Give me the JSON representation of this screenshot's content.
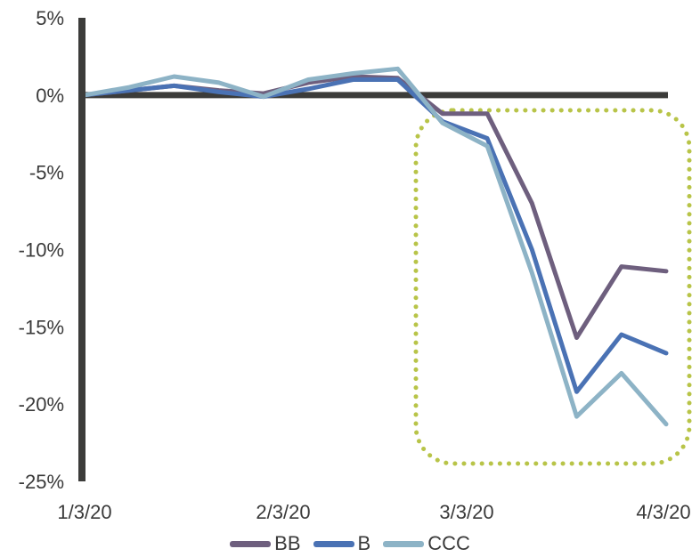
{
  "chart_data": {
    "type": "line",
    "title": "",
    "xlabel": "",
    "ylabel": "",
    "x_ticks": [
      "1/3/20",
      "2/3/20",
      "3/3/20",
      "4/3/20"
    ],
    "y_ticks": [
      "5%",
      "0%",
      "-5%",
      "-10%",
      "-15%",
      "-20%",
      "-25%"
    ],
    "ylim": [
      -25,
      5
    ],
    "y_unit": "%",
    "grid": false,
    "legend_position": "bottom",
    "x": [
      0,
      1,
      2,
      3,
      4,
      5,
      6,
      7,
      8,
      9,
      10,
      11,
      12,
      13
    ],
    "series": [
      {
        "name": "BB",
        "color": "#6e5f7e",
        "values": [
          0.0,
          0.3,
          0.6,
          0.3,
          0.1,
          0.8,
          1.2,
          1.1,
          -1.2,
          -1.2,
          -7.0,
          -15.7,
          -11.1,
          -11.4
        ]
      },
      {
        "name": "B",
        "color": "#4a72b4",
        "values": [
          0.0,
          0.3,
          0.6,
          0.2,
          -0.1,
          0.4,
          1.0,
          1.0,
          -1.7,
          -2.8,
          -10.0,
          -19.2,
          -15.5,
          -16.7
        ]
      },
      {
        "name": "CCC",
        "color": "#8db3c6",
        "values": [
          0.0,
          0.5,
          1.2,
          0.8,
          -0.1,
          1.0,
          1.4,
          1.7,
          -1.8,
          -3.3,
          -11.5,
          -20.8,
          -18.0,
          -21.3
        ]
      }
    ],
    "highlight_color": "#b8c448"
  }
}
